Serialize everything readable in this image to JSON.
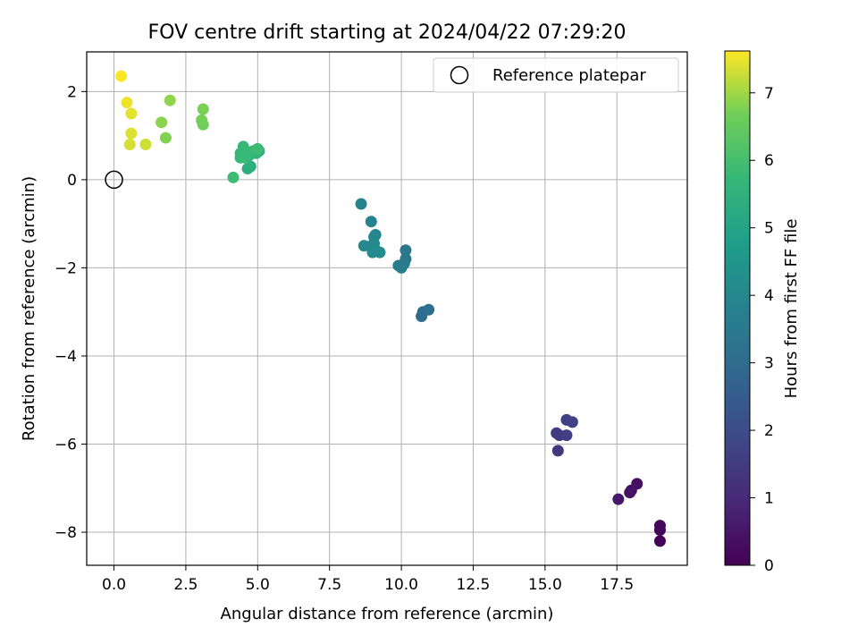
{
  "chart_data": {
    "type": "scatter",
    "title": "FOV centre drift starting at 2024/04/22 07:29:20",
    "xlabel": "Angular distance from reference (arcmin)",
    "ylabel": "Rotation from reference (arcmin)",
    "xlim": [
      -0.95,
      19.95
    ],
    "ylim": [
      -8.75,
      2.9
    ],
    "xticks": [
      0.0,
      2.5,
      5.0,
      7.5,
      10.0,
      12.5,
      15.0,
      17.5
    ],
    "xtick_labels": [
      "0.0",
      "2.5",
      "5.0",
      "7.5",
      "10.0",
      "12.5",
      "15.0",
      "17.5"
    ],
    "yticks": [
      2,
      0,
      -2,
      -4,
      -6,
      -8
    ],
    "ytick_labels": [
      "2",
      "0",
      "−2",
      "−4",
      "−6",
      "−8"
    ],
    "grid": true,
    "legend": {
      "placement": "upper-right",
      "entries": [
        "Reference platepar"
      ]
    },
    "reference_point": {
      "x": 0,
      "y": 0
    },
    "colorbar": {
      "label": "Hours from first FF file",
      "range": [
        0,
        7.62
      ],
      "ticks": [
        0,
        1,
        2,
        3,
        4,
        5,
        6,
        7
      ],
      "tick_labels": [
        "0",
        "1",
        "2",
        "3",
        "4",
        "5",
        "6",
        "7"
      ],
      "colormap": "viridis"
    },
    "points": [
      {
        "x": 19.0,
        "y": -8.2,
        "t": 0.05
      },
      {
        "x": 19.0,
        "y": -7.95,
        "t": 0.1
      },
      {
        "x": 19.0,
        "y": -7.85,
        "t": 0.15
      },
      {
        "x": 18.2,
        "y": -6.9,
        "t": 0.35
      },
      {
        "x": 18.0,
        "y": -7.05,
        "t": 0.4
      },
      {
        "x": 17.95,
        "y": -7.1,
        "t": 0.45
      },
      {
        "x": 17.55,
        "y": -7.25,
        "t": 0.55
      },
      {
        "x": 15.45,
        "y": -6.15,
        "t": 1.4
      },
      {
        "x": 15.4,
        "y": -5.75,
        "t": 1.5
      },
      {
        "x": 15.5,
        "y": -5.8,
        "t": 1.55
      },
      {
        "x": 15.75,
        "y": -5.8,
        "t": 1.6
      },
      {
        "x": 15.75,
        "y": -5.45,
        "t": 1.65
      },
      {
        "x": 15.95,
        "y": -5.5,
        "t": 1.7
      },
      {
        "x": 10.7,
        "y": -3.1,
        "t": 3.0
      },
      {
        "x": 10.75,
        "y": -3.0,
        "t": 3.05
      },
      {
        "x": 10.95,
        "y": -2.95,
        "t": 3.1
      },
      {
        "x": 10.15,
        "y": -1.6,
        "t": 3.4
      },
      {
        "x": 10.15,
        "y": -1.8,
        "t": 3.45
      },
      {
        "x": 10.1,
        "y": -1.9,
        "t": 3.5
      },
      {
        "x": 10.0,
        "y": -1.95,
        "t": 3.55
      },
      {
        "x": 9.9,
        "y": -1.95,
        "t": 3.6
      },
      {
        "x": 10.0,
        "y": -2.0,
        "t": 3.6
      },
      {
        "x": 8.95,
        "y": -0.95,
        "t": 3.8
      },
      {
        "x": 8.6,
        "y": -0.55,
        "t": 3.85
      },
      {
        "x": 9.1,
        "y": -1.25,
        "t": 3.9
      },
      {
        "x": 9.05,
        "y": -1.3,
        "t": 3.95
      },
      {
        "x": 8.7,
        "y": -1.5,
        "t": 4.0
      },
      {
        "x": 8.95,
        "y": -1.5,
        "t": 4.05
      },
      {
        "x": 9.05,
        "y": -1.45,
        "t": 4.05
      },
      {
        "x": 9.1,
        "y": -1.6,
        "t": 4.1
      },
      {
        "x": 9.0,
        "y": -1.65,
        "t": 4.1
      },
      {
        "x": 9.25,
        "y": -1.65,
        "t": 4.15
      },
      {
        "x": 4.65,
        "y": 0.25,
        "t": 5.35
      },
      {
        "x": 4.75,
        "y": 0.3,
        "t": 5.4
      },
      {
        "x": 4.95,
        "y": 0.6,
        "t": 5.5
      },
      {
        "x": 5.05,
        "y": 0.65,
        "t": 5.55
      },
      {
        "x": 4.85,
        "y": 0.65,
        "t": 5.6
      },
      {
        "x": 4.7,
        "y": 0.55,
        "t": 5.6
      },
      {
        "x": 4.55,
        "y": 0.55,
        "t": 5.65
      },
      {
        "x": 4.4,
        "y": 0.5,
        "t": 5.7
      },
      {
        "x": 4.4,
        "y": 0.6,
        "t": 5.7
      },
      {
        "x": 4.5,
        "y": 0.75,
        "t": 5.75
      },
      {
        "x": 4.6,
        "y": 0.65,
        "t": 5.8
      },
      {
        "x": 4.55,
        "y": 0.5,
        "t": 5.8
      },
      {
        "x": 5.0,
        "y": 0.7,
        "t": 5.85
      },
      {
        "x": 4.15,
        "y": 0.05,
        "t": 5.9
      },
      {
        "x": 3.1,
        "y": 1.25,
        "t": 6.65
      },
      {
        "x": 3.05,
        "y": 1.35,
        "t": 6.7
      },
      {
        "x": 3.1,
        "y": 1.6,
        "t": 6.75
      },
      {
        "x": 1.8,
        "y": 0.95,
        "t": 6.8
      },
      {
        "x": 1.65,
        "y": 1.3,
        "t": 6.85
      },
      {
        "x": 1.95,
        "y": 1.8,
        "t": 6.9
      },
      {
        "x": 1.1,
        "y": 0.8,
        "t": 7.3
      },
      {
        "x": 0.55,
        "y": 0.8,
        "t": 7.35
      },
      {
        "x": 0.6,
        "y": 1.05,
        "t": 7.4
      },
      {
        "x": 0.6,
        "y": 1.5,
        "t": 7.45
      },
      {
        "x": 0.45,
        "y": 1.75,
        "t": 7.5
      },
      {
        "x": 0.25,
        "y": 2.35,
        "t": 7.6
      }
    ]
  }
}
